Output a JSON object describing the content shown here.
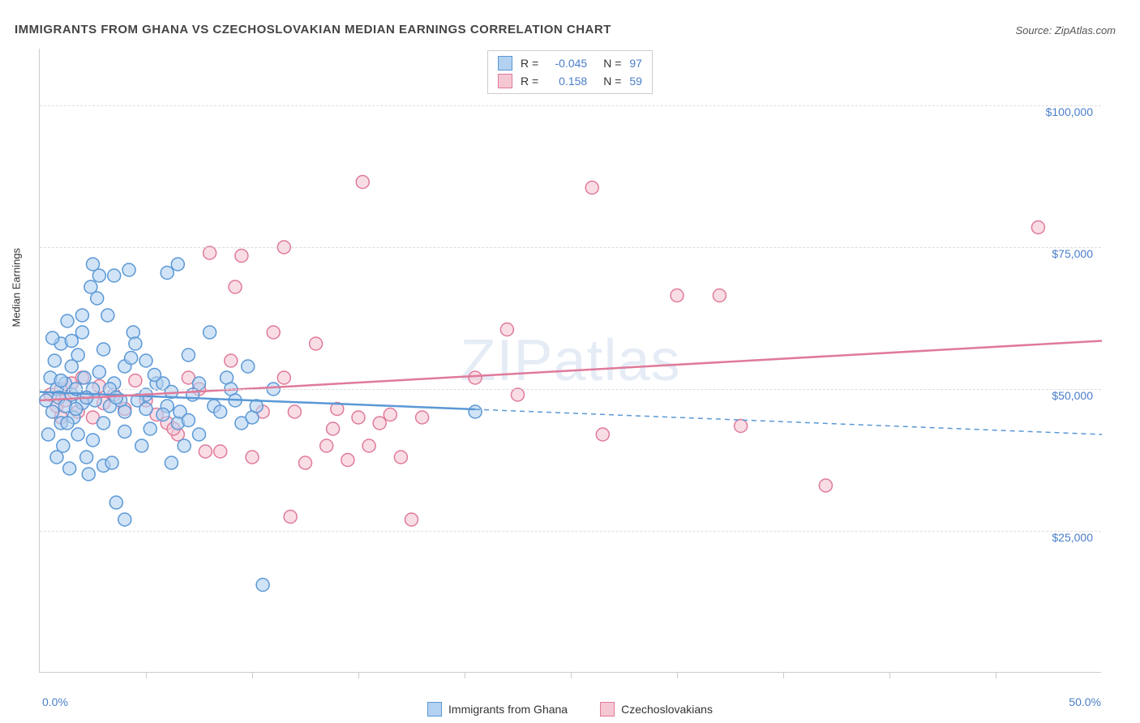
{
  "title": "IMMIGRANTS FROM GHANA VS CZECHOSLOVAKIAN MEDIAN EARNINGS CORRELATION CHART",
  "source": "Source: ZipAtlas.com",
  "watermark": "ZIPatlas",
  "chart": {
    "type": "scatter",
    "xlim": [
      0,
      50
    ],
    "ylim": [
      0,
      110000
    ],
    "x_axis_label_min": "0.0%",
    "x_axis_label_max": "50.0%",
    "y_axis_title": "Median Earnings",
    "y_ticks": [
      {
        "value": 25000,
        "label": "$25,000"
      },
      {
        "value": 50000,
        "label": "$50,000"
      },
      {
        "value": 75000,
        "label": "$75,000"
      },
      {
        "value": 100000,
        "label": "$100,000"
      }
    ],
    "x_tick_positions": [
      5,
      10,
      15,
      20,
      25,
      30,
      35,
      40,
      45
    ],
    "background_color": "#ffffff",
    "grid_color": "#dddddd",
    "axis_color": "#cccccc",
    "label_color": "#4a7ec9",
    "series": [
      {
        "name": "Immigrants from Ghana",
        "fill_color": "#b3d1f0",
        "stroke_color": "#5a98d6",
        "marker_radius": 8,
        "R_label": "R =",
        "R_value": "-0.045",
        "N_label": "N =",
        "N_value": "97",
        "trend": {
          "x1": 0,
          "y1": 49500,
          "x2": 50,
          "y2": 42000,
          "solid_until_x": 20.5
        },
        "points": [
          [
            0.3,
            48000
          ],
          [
            0.5,
            52000
          ],
          [
            0.6,
            46000
          ],
          [
            0.7,
            55000
          ],
          [
            0.8,
            50000
          ],
          [
            0.9,
            48500
          ],
          [
            1.0,
            44000
          ],
          [
            1.0,
            58000
          ],
          [
            1.1,
            40000
          ],
          [
            1.2,
            51000
          ],
          [
            1.2,
            47000
          ],
          [
            1.3,
            62000
          ],
          [
            1.4,
            36000
          ],
          [
            1.5,
            49000
          ],
          [
            1.5,
            54000
          ],
          [
            1.6,
            45000
          ],
          [
            1.7,
            50000
          ],
          [
            1.8,
            56000
          ],
          [
            1.8,
            42000
          ],
          [
            2.0,
            47500
          ],
          [
            2.0,
            60000
          ],
          [
            2.1,
            52000
          ],
          [
            2.2,
            38000
          ],
          [
            2.3,
            35000
          ],
          [
            2.4,
            68000
          ],
          [
            2.5,
            72000
          ],
          [
            2.5,
            50000
          ],
          [
            2.6,
            48000
          ],
          [
            2.7,
            66000
          ],
          [
            2.8,
            70000
          ],
          [
            3.0,
            44000
          ],
          [
            3.0,
            36500
          ],
          [
            3.2,
            63000
          ],
          [
            3.3,
            47000
          ],
          [
            3.4,
            37000
          ],
          [
            3.5,
            70000
          ],
          [
            3.5,
            51000
          ],
          [
            3.6,
            30000
          ],
          [
            3.8,
            48000
          ],
          [
            4.0,
            54000
          ],
          [
            4.0,
            46000
          ],
          [
            4.2,
            71000
          ],
          [
            4.4,
            60000
          ],
          [
            4.5,
            58000
          ],
          [
            4.8,
            40000
          ],
          [
            5.0,
            49000
          ],
          [
            5.0,
            55000
          ],
          [
            5.2,
            43000
          ],
          [
            5.5,
            51000
          ],
          [
            5.8,
            51000
          ],
          [
            6.0,
            47000
          ],
          [
            6.0,
            70500
          ],
          [
            6.2,
            37000
          ],
          [
            6.5,
            72000
          ],
          [
            6.5,
            44000
          ],
          [
            6.8,
            40000
          ],
          [
            7.0,
            56000
          ],
          [
            7.2,
            49000
          ],
          [
            7.5,
            42000
          ],
          [
            8.0,
            60000
          ],
          [
            8.2,
            47000
          ],
          [
            8.5,
            46000
          ],
          [
            8.8,
            52000
          ],
          [
            9.0,
            50000
          ],
          [
            9.2,
            48000
          ],
          [
            9.5,
            44000
          ],
          [
            9.8,
            54000
          ],
          [
            10.0,
            45000
          ],
          [
            10.2,
            47000
          ],
          [
            10.5,
            15500
          ],
          [
            11.0,
            50000
          ],
          [
            0.4,
            42000
          ],
          [
            0.6,
            59000
          ],
          [
            0.8,
            38000
          ],
          [
            1.0,
            51500
          ],
          [
            1.3,
            44000
          ],
          [
            1.5,
            58500
          ],
          [
            1.7,
            46500
          ],
          [
            2.0,
            63000
          ],
          [
            2.2,
            48500
          ],
          [
            2.5,
            41000
          ],
          [
            2.8,
            53000
          ],
          [
            3.0,
            57000
          ],
          [
            3.3,
            50000
          ],
          [
            3.6,
            48500
          ],
          [
            4.0,
            42500
          ],
          [
            4.3,
            55500
          ],
          [
            4.6,
            48000
          ],
          [
            5.0,
            46500
          ],
          [
            5.4,
            52500
          ],
          [
            5.8,
            45500
          ],
          [
            6.2,
            49500
          ],
          [
            6.6,
            46000
          ],
          [
            7.0,
            44500
          ],
          [
            7.5,
            51000
          ],
          [
            20.5,
            46000
          ],
          [
            4.0,
            27000
          ]
        ]
      },
      {
        "name": "Czechoslovakians",
        "fill_color": "#f5c7d3",
        "stroke_color": "#e07a9a",
        "marker_radius": 8,
        "R_label": "R =",
        "R_value": "0.158",
        "N_label": "N =",
        "N_value": "59",
        "trend": {
          "x1": 0,
          "y1": 48000,
          "x2": 50,
          "y2": 58500,
          "solid_until_x": 50
        },
        "points": [
          [
            0.5,
            49000
          ],
          [
            0.8,
            47000
          ],
          [
            1.0,
            50000
          ],
          [
            1.2,
            48000
          ],
          [
            1.5,
            51000
          ],
          [
            1.8,
            46000
          ],
          [
            2.0,
            52000
          ],
          [
            2.2,
            48500
          ],
          [
            2.5,
            45000
          ],
          [
            2.8,
            50500
          ],
          [
            3.0,
            47500
          ],
          [
            3.5,
            49000
          ],
          [
            4.0,
            46500
          ],
          [
            4.5,
            51500
          ],
          [
            5.0,
            48000
          ],
          [
            5.5,
            45500
          ],
          [
            6.0,
            44000
          ],
          [
            6.5,
            42000
          ],
          [
            7.0,
            52000
          ],
          [
            7.5,
            50000
          ],
          [
            8.0,
            74000
          ],
          [
            8.5,
            39000
          ],
          [
            9.0,
            55000
          ],
          [
            9.5,
            73500
          ],
          [
            10.0,
            38000
          ],
          [
            10.5,
            46000
          ],
          [
            11.0,
            60000
          ],
          [
            11.5,
            75000
          ],
          [
            12.0,
            46000
          ],
          [
            12.5,
            37000
          ],
          [
            13.0,
            58000
          ],
          [
            13.5,
            40000
          ],
          [
            14.0,
            46500
          ],
          [
            14.5,
            37500
          ],
          [
            15.0,
            45000
          ],
          [
            15.5,
            40000
          ],
          [
            16.0,
            44000
          ],
          [
            17.0,
            38000
          ],
          [
            17.5,
            27000
          ],
          [
            18.0,
            45000
          ],
          [
            11.8,
            27500
          ],
          [
            15.2,
            86500
          ],
          [
            20.5,
            52000
          ],
          [
            22.0,
            60500
          ],
          [
            22.5,
            49000
          ],
          [
            26.0,
            85500
          ],
          [
            26.5,
            42000
          ],
          [
            30.0,
            66500
          ],
          [
            32.0,
            66500
          ],
          [
            33.0,
            43500
          ],
          [
            37.0,
            33000
          ],
          [
            47.0,
            78500
          ],
          [
            6.3,
            43000
          ],
          [
            7.8,
            39000
          ],
          [
            9.2,
            68000
          ],
          [
            11.5,
            52000
          ],
          [
            13.8,
            43000
          ],
          [
            16.5,
            45500
          ],
          [
            1.0,
            45000
          ]
        ]
      }
    ]
  }
}
